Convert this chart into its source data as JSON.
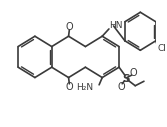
{
  "bg_color": "#ffffff",
  "line_color": "#3a3a3a",
  "line_width": 1.2,
  "figsize": [
    1.67,
    1.27
  ],
  "dpi": 100,
  "xlim": [
    0,
    10
  ],
  "ylim": [
    0,
    7.6
  ],
  "r": 1.25
}
